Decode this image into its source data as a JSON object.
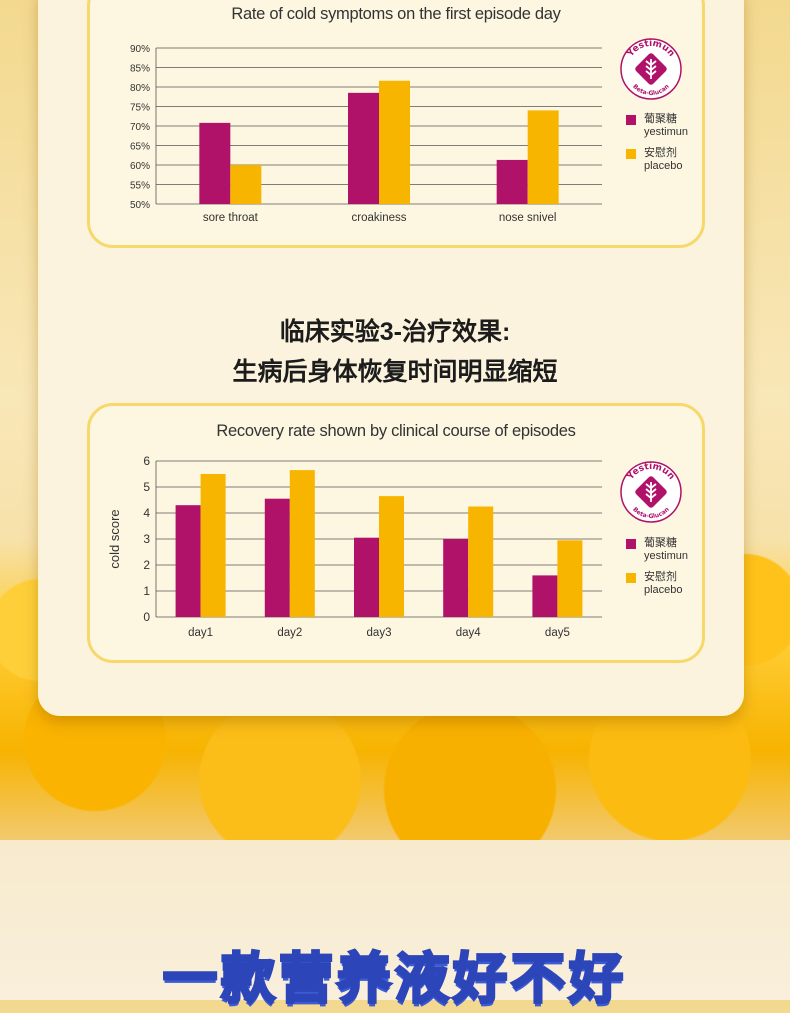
{
  "section_heading": {
    "line1": "临床实验3-治疗效果:",
    "line2": "生病后身体恢复时间明显缩短"
  },
  "bottom_banner": "一款营养液好不好",
  "legend": {
    "yestimun_cn": "葡聚糖",
    "yestimun_en": "yestimun",
    "placebo_cn": "安慰剂",
    "placebo_en": "placebo"
  },
  "logo": {
    "top_text": "Yestimun",
    "bottom_text": "Beta-Glucan"
  },
  "colors": {
    "yestimun": "#b0126a",
    "placebo": "#f8b500",
    "card_border": "#f6d86b",
    "banner_stroke": "#2c45b8"
  },
  "chart_data": [
    {
      "type": "bar",
      "title": "Rate of cold symptoms on the first episode day",
      "categories": [
        "sore throat",
        "croakiness",
        "nose snivel"
      ],
      "series": [
        {
          "name": "yestimun",
          "values": [
            70.8,
            78.5,
            61.3
          ]
        },
        {
          "name": "placebo",
          "values": [
            60.0,
            81.6,
            74.0
          ]
        }
      ],
      "y_ticks": [
        "50%",
        "55%",
        "60%",
        "65%",
        "70%",
        "75%",
        "80%",
        "85%",
        "90%"
      ],
      "ylim": [
        50,
        90
      ],
      "grid": true,
      "legend_position": "right"
    },
    {
      "type": "bar",
      "title": "Recovery rate shown by clinical course of episodes",
      "ylabel": "cold score",
      "categories": [
        "day1",
        "day2",
        "day3",
        "day4",
        "day5"
      ],
      "series": [
        {
          "name": "yestimun",
          "values": [
            4.3,
            4.55,
            3.05,
            3.0,
            1.6
          ]
        },
        {
          "name": "placebo",
          "values": [
            5.5,
            5.65,
            4.65,
            4.25,
            2.95
          ]
        }
      ],
      "y_ticks": [
        "0",
        "1",
        "2",
        "3",
        "4",
        "5",
        "6"
      ],
      "ylim": [
        0,
        6
      ],
      "grid": true,
      "legend_position": "right"
    }
  ]
}
